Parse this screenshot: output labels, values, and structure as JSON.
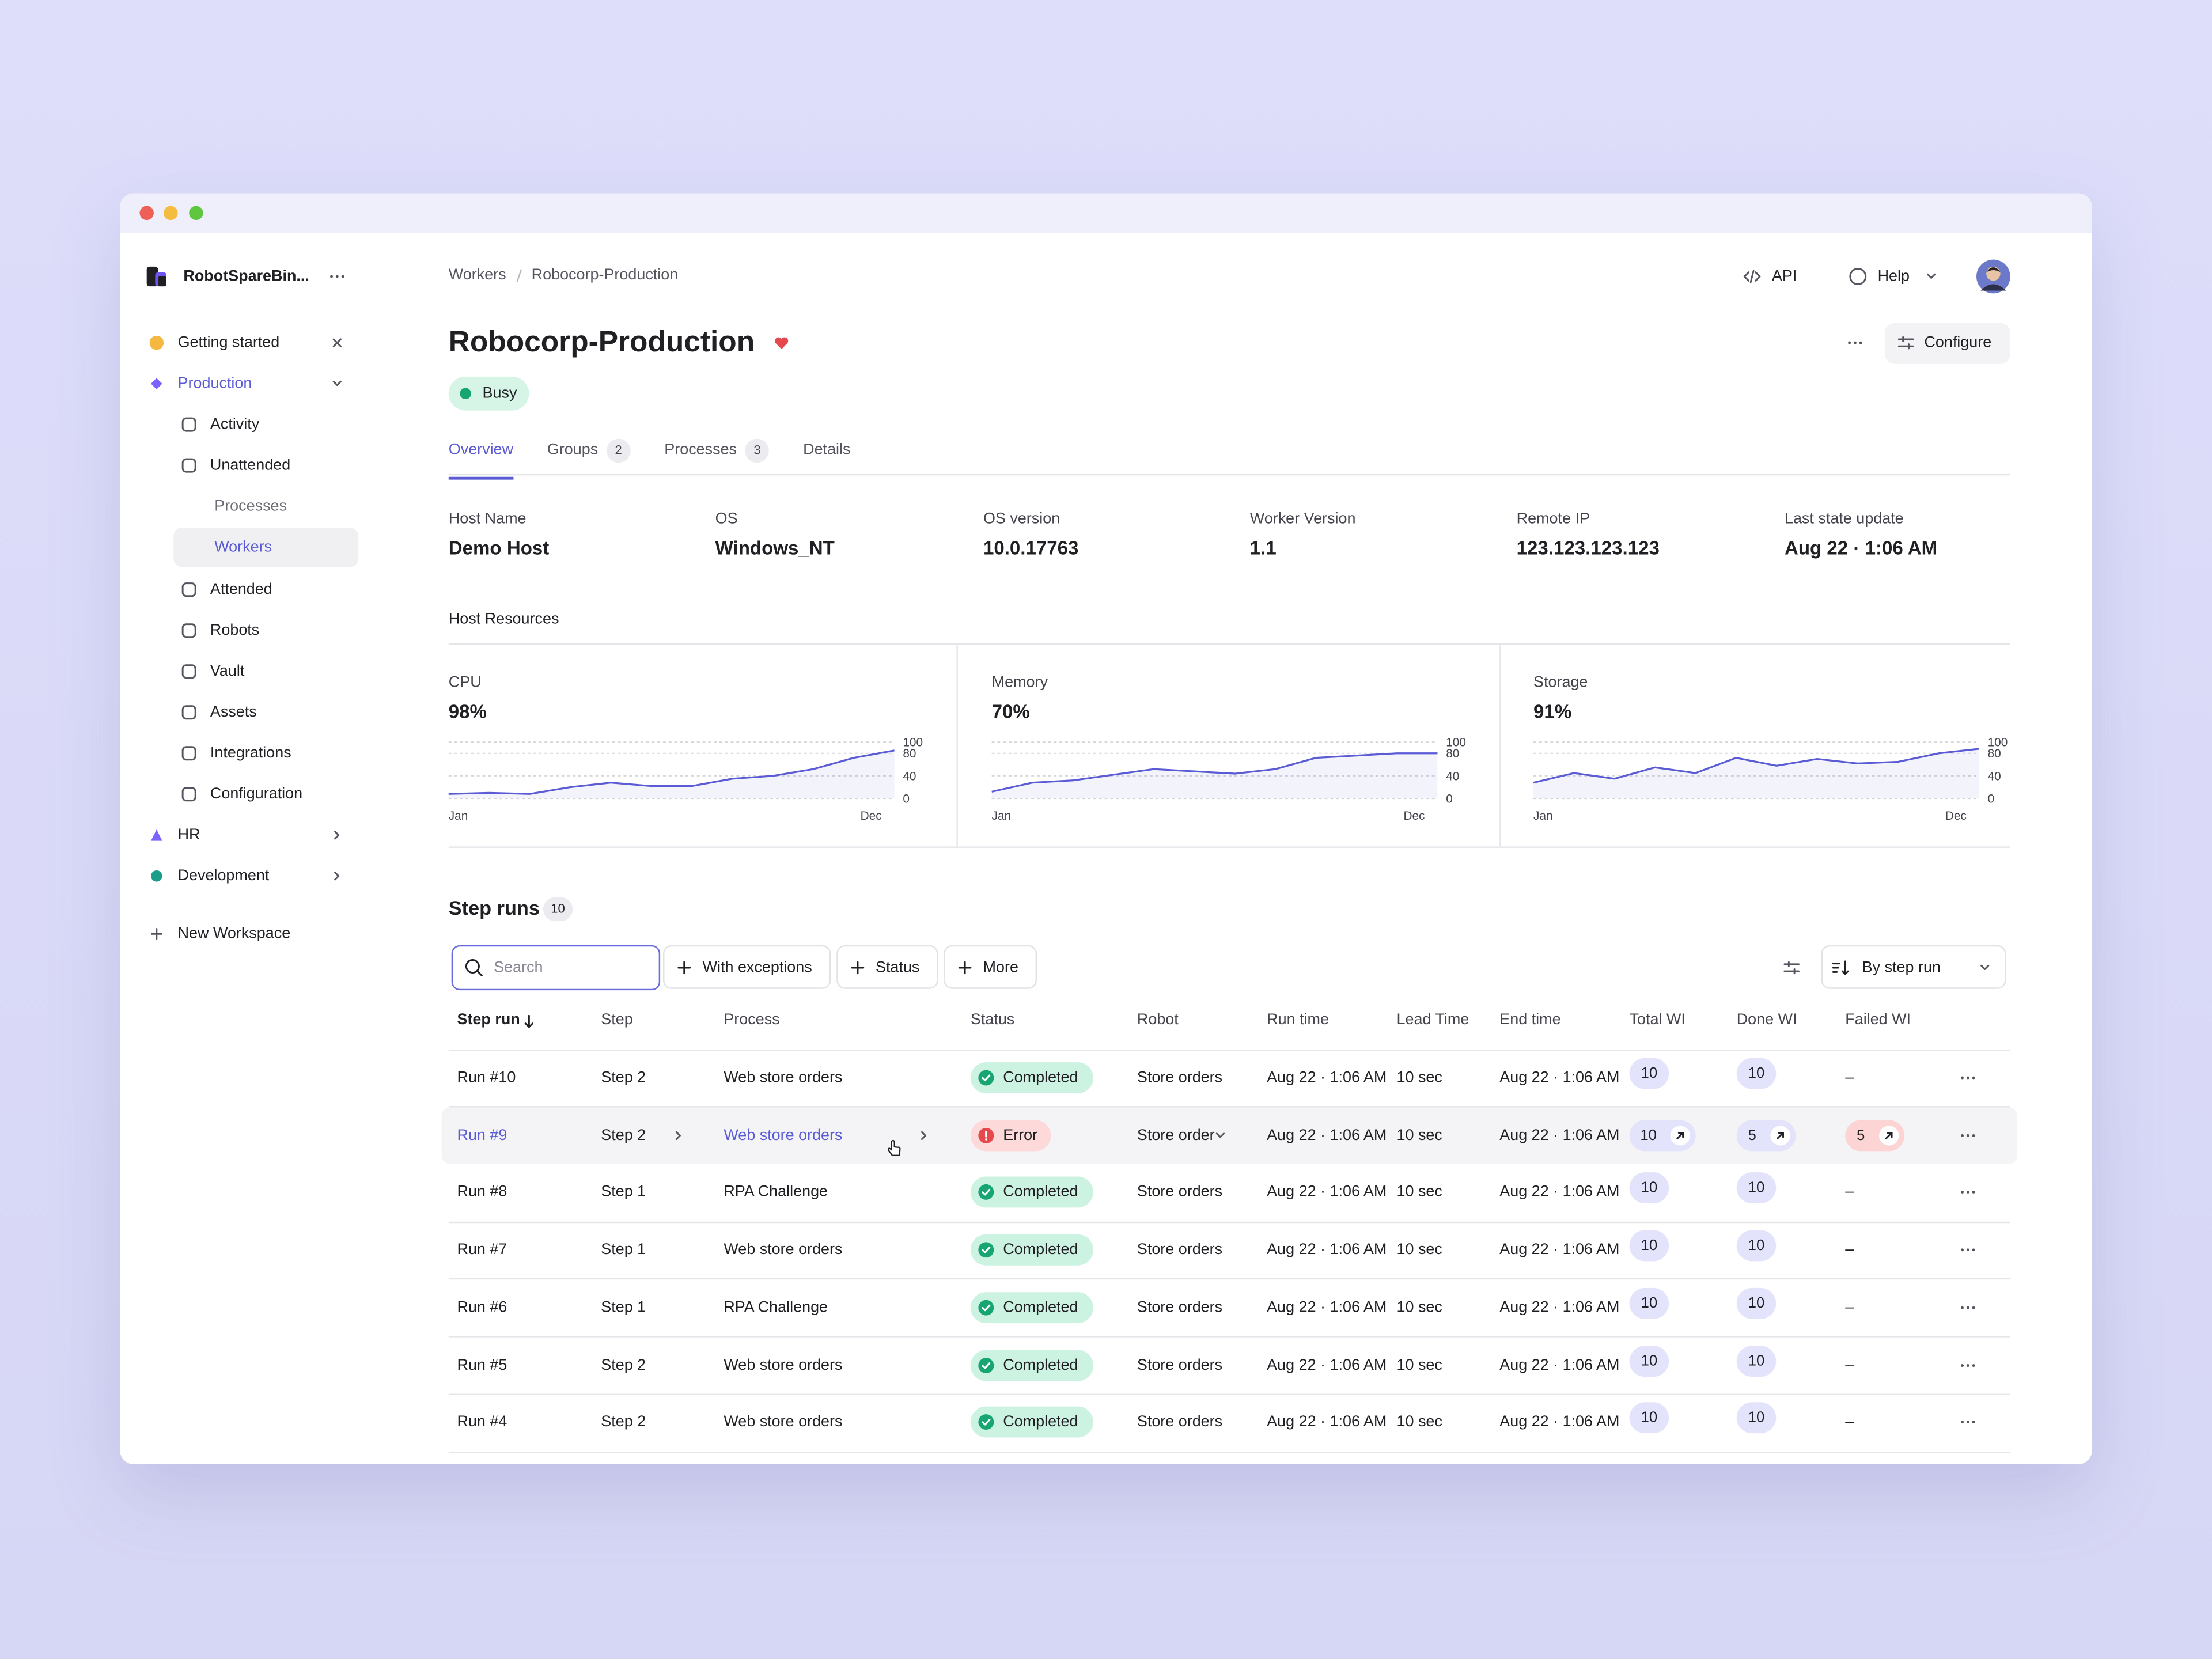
{
  "sidebar": {
    "workspace": "RobotSpareBin...",
    "getting_started": "Getting started",
    "workspaces": [
      {
        "name": "Production",
        "items": [
          {
            "label": "Activity"
          },
          {
            "label": "Unattended",
            "items": [
              "Processes",
              "Workers"
            ]
          },
          {
            "label": "Attended"
          },
          {
            "label": "Robots"
          },
          {
            "label": "Vault"
          },
          {
            "label": "Assets"
          },
          {
            "label": "Integrations"
          },
          {
            "label": "Configuration"
          }
        ]
      },
      {
        "name": "HR"
      },
      {
        "name": "Development"
      }
    ],
    "new_workspace": "New Workspace"
  },
  "header": {
    "breadcrumb": [
      "Workers",
      "Robocorp-Production"
    ],
    "actions": [
      "API",
      "Help"
    ],
    "title": "Robocorp-Production",
    "status": "Busy",
    "configure": "Configure"
  },
  "tabs": [
    {
      "label": "Overview"
    },
    {
      "label": "Groups",
      "count": 2
    },
    {
      "label": "Processes",
      "count": 3
    },
    {
      "label": "Details"
    }
  ],
  "info": [
    {
      "label": "Host Name",
      "value": "Demo Host"
    },
    {
      "label": "OS",
      "value": "Windows_NT"
    },
    {
      "label": "OS version",
      "value": "10.0.17763"
    },
    {
      "label": "Worker Version",
      "value": "1.1"
    },
    {
      "label": "Remote IP",
      "value": "123.123.123.123"
    },
    {
      "label": "Last state update",
      "value": "Aug 22 · 1:06 AM"
    }
  ],
  "host_resources": {
    "title": "Host Resources",
    "chart_data": [
      {
        "type": "line",
        "title": "CPU",
        "current": "98%",
        "color": "#5b5bd6",
        "categories": [
          "Jan",
          null,
          null,
          null,
          null,
          null,
          null,
          null,
          null,
          null,
          null,
          "Dec"
        ],
        "values": [
          8,
          10,
          8,
          20,
          28,
          22,
          22,
          35,
          40,
          52,
          72,
          85
        ],
        "ylim": [
          0,
          100
        ],
        "yticks": [
          0,
          40,
          80,
          100
        ],
        "grid": true
      },
      {
        "type": "line",
        "title": "Memory",
        "current": "70%",
        "color": "#5b5bd6",
        "categories": [
          "Jan",
          null,
          null,
          null,
          null,
          null,
          null,
          null,
          null,
          null,
          null,
          "Dec"
        ],
        "values": [
          12,
          28,
          32,
          42,
          52,
          48,
          44,
          52,
          72,
          76,
          80,
          80
        ],
        "ylim": [
          0,
          100
        ],
        "yticks": [
          0,
          40,
          80,
          100
        ],
        "grid": true
      },
      {
        "type": "line",
        "title": "Storage",
        "current": "91%",
        "color": "#5b5bd6",
        "categories": [
          "Jan",
          null,
          null,
          null,
          null,
          null,
          null,
          null,
          null,
          null,
          null,
          "Dec"
        ],
        "values": [
          28,
          45,
          35,
          55,
          45,
          72,
          58,
          70,
          62,
          65,
          80,
          88
        ],
        "ylim": [
          0,
          100
        ],
        "yticks": [
          0,
          40,
          80,
          100
        ],
        "grid": true
      }
    ]
  },
  "step_runs": {
    "title": "Step runs",
    "count": 10,
    "search_placeholder": "Search",
    "filters": [
      "With exceptions",
      "Status",
      "More"
    ],
    "sort": "By step run",
    "columns": [
      "Step run",
      "Step",
      "Process",
      "Status",
      "Robot",
      "Run time",
      "Lead Time",
      "End time",
      "Total WI",
      "Done WI",
      "Failed WI"
    ],
    "rows": [
      [
        "Run #10",
        "Step 2",
        "Web store orders",
        "Completed",
        "Store orders",
        "Aug 22 · 1:06 AM",
        "10 sec",
        "Aug 22 · 1:06 AM",
        10,
        10,
        "–"
      ],
      [
        "Run #9",
        "Step 2",
        "Web store orders",
        "Error",
        "Store order",
        "Aug 22 · 1:06 AM",
        "10 sec",
        "Aug 22 · 1:06 AM",
        10,
        5,
        5
      ],
      [
        "Run #8",
        "Step 1",
        "RPA Challenge",
        "Completed",
        "Store orders",
        "Aug 22 · 1:06 AM",
        "10 sec",
        "Aug 22 · 1:06 AM",
        10,
        10,
        "–"
      ],
      [
        "Run #7",
        "Step 1",
        "Web store orders",
        "Completed",
        "Store orders",
        "Aug 22 · 1:06 AM",
        "10 sec",
        "Aug 22 · 1:06 AM",
        10,
        10,
        "–"
      ],
      [
        "Run #6",
        "Step 1",
        "RPA Challenge",
        "Completed",
        "Store orders",
        "Aug 22 · 1:06 AM",
        "10 sec",
        "Aug 22 · 1:06 AM",
        10,
        10,
        "–"
      ],
      [
        "Run #5",
        "Step 2",
        "Web store orders",
        "Completed",
        "Store orders",
        "Aug 22 · 1:06 AM",
        "10 sec",
        "Aug 22 · 1:06 AM",
        10,
        10,
        "–"
      ],
      [
        "Run #4",
        "Step 2",
        "Web store orders",
        "Completed",
        "Store orders",
        "Aug 22 · 1:06 AM",
        "10 sec",
        "Aug 22 · 1:06 AM",
        10,
        10,
        "–"
      ]
    ]
  }
}
